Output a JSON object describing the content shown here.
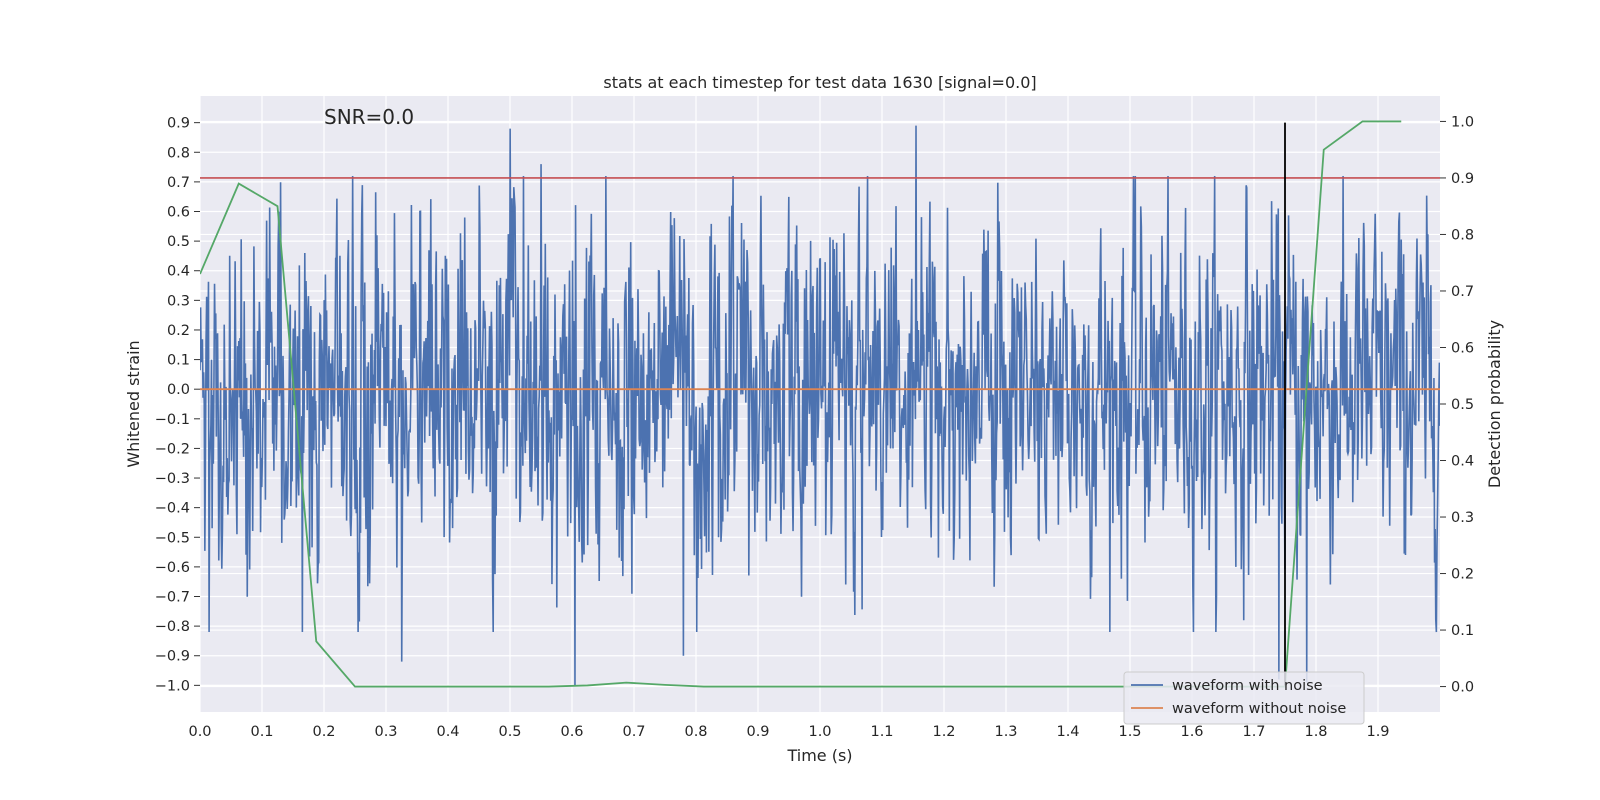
{
  "chart_data": {
    "type": "line",
    "title": "stats at each timestep for test data 1630 [signal=0.0]",
    "annotation": "SNR=0.0",
    "xlabel": "Time (s)",
    "ylabel": "Whitened strain",
    "y2label": "Detection probability",
    "xlim": [
      0.0,
      2.0
    ],
    "ylim": [
      -1.09,
      0.99
    ],
    "y2lim": [
      -0.045,
      1.045
    ],
    "x_ticks": [
      0.0,
      0.1,
      0.2,
      0.3,
      0.4,
      0.5,
      0.6,
      0.7,
      0.8,
      0.9,
      1.0,
      1.1,
      1.2,
      1.3,
      1.4,
      1.5,
      1.6,
      1.7,
      1.8,
      1.9
    ],
    "x_tick_labels": [
      "0.0",
      "0.1",
      "0.2",
      "0.3",
      "0.4",
      "0.5",
      "0.6",
      "0.7",
      "0.8",
      "0.9",
      "1.0",
      "1.1",
      "1.2",
      "1.3",
      "1.4",
      "1.5",
      "1.6",
      "1.7",
      "1.8",
      "1.9"
    ],
    "y_ticks": [
      -1.0,
      -0.9,
      -0.8,
      -0.7,
      -0.6,
      -0.5,
      -0.4,
      -0.3,
      -0.2,
      -0.1,
      0.0,
      0.1,
      0.2,
      0.3,
      0.4,
      0.5,
      0.6,
      0.7,
      0.8,
      0.9
    ],
    "y_tick_labels": [
      "−1.0",
      "−0.9",
      "−0.8",
      "−0.7",
      "−0.6",
      "−0.5",
      "−0.4",
      "−0.3",
      "−0.2",
      "−0.1",
      "0.0",
      "0.1",
      "0.2",
      "0.3",
      "0.4",
      "0.5",
      "0.6",
      "0.7",
      "0.8",
      "0.9"
    ],
    "y2_ticks": [
      0.0,
      0.1,
      0.2,
      0.3,
      0.4,
      0.5,
      0.6,
      0.7,
      0.8,
      0.9,
      1.0
    ],
    "y2_tick_labels": [
      "0.0",
      "0.1",
      "0.2",
      "0.3",
      "0.4",
      "0.5",
      "0.6",
      "0.7",
      "0.8",
      "0.9",
      "1.0"
    ],
    "grid": true,
    "legend_position": "lower-right",
    "colors": {
      "background": "#eaeaf2",
      "grid": "#ffffff",
      "noisy": "#4c72b0",
      "clean": "#dd8452",
      "probability": "#55a868",
      "threshold": "#c44e52",
      "marker": "#000000"
    },
    "series": [
      {
        "name": "waveform with noise",
        "noise_model": "random",
        "sample_count": 2048,
        "amplitude_std": 0.27,
        "notable_spikes": [
          {
            "x": 0.5,
            "y": 0.88
          },
          {
            "x": 0.55,
            "y": 0.76
          },
          {
            "x": 0.605,
            "y": -1.0
          },
          {
            "x": 0.655,
            "y": 0.72
          },
          {
            "x": 1.155,
            "y": 0.89
          },
          {
            "x": 0.325,
            "y": -0.92
          },
          {
            "x": 0.78,
            "y": -0.9
          },
          {
            "x": 1.785,
            "y": -0.99
          },
          {
            "x": 1.74,
            "y": -0.98
          }
        ]
      },
      {
        "name": "waveform without noise",
        "x": [
          0.0,
          2.0
        ],
        "y": [
          0.0,
          0.0
        ]
      },
      {
        "axis": "right",
        "x": [
          0.0,
          0.0625,
          0.125,
          0.1875,
          0.25,
          0.3125,
          0.375,
          0.4375,
          0.5,
          0.5625,
          0.625,
          0.6875,
          0.75,
          0.8125,
          0.875,
          0.9375,
          1.0,
          1.0625,
          1.125,
          1.1875,
          1.25,
          1.3125,
          1.375,
          1.4375,
          1.5,
          1.5625,
          1.625,
          1.6875,
          1.75,
          1.8125,
          1.875,
          1.9375
        ],
        "y": [
          0.73,
          0.89,
          0.85,
          0.08,
          0.0,
          0.0,
          0.0,
          0.0,
          0.0,
          0.0,
          0.002,
          0.007,
          0.003,
          0.0,
          0.0,
          0.0,
          0.0,
          0.0,
          0.0,
          0.0,
          0.0,
          0.0,
          0.0,
          0.0,
          0.0,
          0.0,
          0.0,
          0.0,
          0.0,
          0.95,
          1.0,
          1.0
        ]
      },
      {
        "axis": "right",
        "x": [
          0.0,
          2.0
        ],
        "y": [
          0.9,
          0.9
        ]
      },
      {
        "x": [
          1.75,
          1.75
        ],
        "y": [
          -1.0,
          0.9
        ]
      }
    ]
  }
}
